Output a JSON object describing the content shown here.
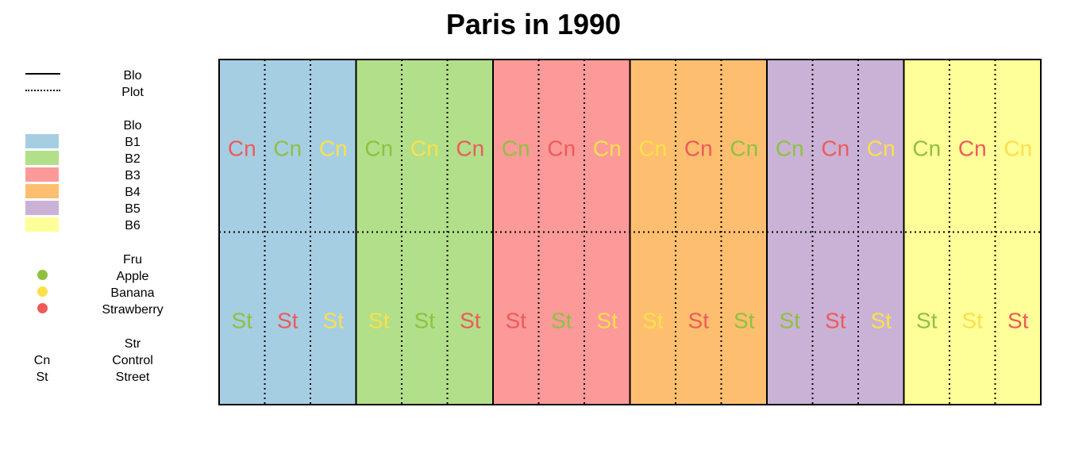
{
  "title": "Paris in 1990",
  "legend": {
    "lines": {
      "heading": "Blo",
      "items": [
        {
          "label": "Plot",
          "style": "solid"
        },
        {
          "label": "Plot",
          "style": "dotted"
        }
      ]
    },
    "blocks": {
      "heading": "Blo",
      "items": [
        {
          "label": "B1",
          "color": "#a6cee3"
        },
        {
          "label": "B2",
          "color": "#b2df8a"
        },
        {
          "label": "B3",
          "color": "#fb9a99"
        },
        {
          "label": "B4",
          "color": "#fdbf6f"
        },
        {
          "label": "B5",
          "color": "#cab2d6"
        },
        {
          "label": "B6",
          "color": "#ffff99"
        }
      ]
    },
    "fruits": {
      "heading": "Fru",
      "items": [
        {
          "label": "Apple",
          "color": "#8fc13f"
        },
        {
          "label": "Banana",
          "color": "#fbe04a"
        },
        {
          "label": "Strawberry",
          "color": "#ee5a5a"
        }
      ]
    },
    "street": {
      "heading": "Str",
      "items": [
        {
          "code": "Cn",
          "label": "Control"
        },
        {
          "code": "St",
          "label": "Street"
        }
      ]
    }
  },
  "fruit_colors": {
    "Apple": "#8fc13f",
    "Banana": "#fbe04a",
    "Strawberry": "#ee5a5a"
  },
  "grid": {
    "rows": [
      "Cn",
      "St"
    ],
    "blocks": [
      {
        "block": "B1",
        "top": [
          "Strawberry",
          "Apple",
          "Banana"
        ],
        "bottom": [
          "Apple",
          "Strawberry",
          "Banana"
        ]
      },
      {
        "block": "B2",
        "top": [
          "Apple",
          "Banana",
          "Strawberry"
        ],
        "bottom": [
          "Banana",
          "Apple",
          "Strawberry"
        ]
      },
      {
        "block": "B3",
        "top": [
          "Apple",
          "Strawberry",
          "Banana"
        ],
        "bottom": [
          "Strawberry",
          "Apple",
          "Banana"
        ]
      },
      {
        "block": "B4",
        "top": [
          "Banana",
          "Strawberry",
          "Apple"
        ],
        "bottom": [
          "Banana",
          "Strawberry",
          "Apple"
        ]
      },
      {
        "block": "B5",
        "top": [
          "Apple",
          "Strawberry",
          "Banana"
        ],
        "bottom": [
          "Apple",
          "Strawberry",
          "Banana"
        ]
      },
      {
        "block": "B6",
        "top": [
          "Apple",
          "Strawberry",
          "Banana"
        ],
        "bottom": [
          "Apple",
          "Banana",
          "Strawberry"
        ]
      }
    ]
  }
}
